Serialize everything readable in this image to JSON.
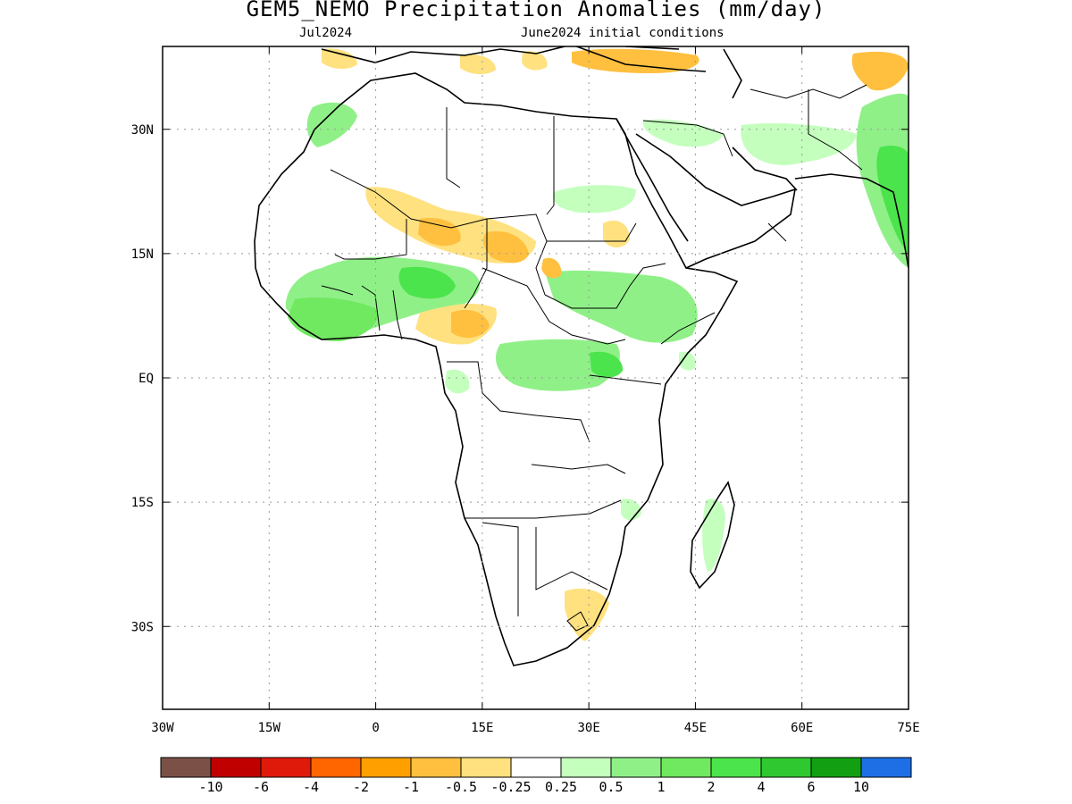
{
  "title": "GEM5_NEMO Precipitation Anomalies (mm/day)",
  "subtitle_left": "Jul2024",
  "subtitle_right": "June2024 initial conditions",
  "map": {
    "lon_range": [
      -30,
      75
    ],
    "lat_range": [
      -40,
      40
    ],
    "lon_ticks": [
      {
        "value": -30,
        "label": "30W"
      },
      {
        "value": -15,
        "label": "15W"
      },
      {
        "value": 0,
        "label": "0"
      },
      {
        "value": 15,
        "label": "15E"
      },
      {
        "value": 30,
        "label": "30E"
      },
      {
        "value": 45,
        "label": "45E"
      },
      {
        "value": 60,
        "label": "60E"
      },
      {
        "value": 75,
        "label": "75E"
      }
    ],
    "lat_ticks": [
      {
        "value": 30,
        "label": "30N"
      },
      {
        "value": 15,
        "label": "15N"
      },
      {
        "value": 0,
        "label": "EQ"
      },
      {
        "value": -15,
        "label": "15S"
      },
      {
        "value": -30,
        "label": "30S"
      }
    ],
    "grid": "dotted"
  },
  "colorbar": {
    "colors": [
      "#7b5147",
      "#c00000",
      "#e01a0a",
      "#ff6600",
      "#ffa000",
      "#ffc040",
      "#ffe180",
      "#ffffff",
      "#c4ffbe",
      "#90f088",
      "#70e860",
      "#4ce44c",
      "#30c830",
      "#12a012",
      "#1e6fe6"
    ],
    "labels": [
      "-10",
      "-6",
      "-4",
      "-2",
      "-1",
      "-0.5",
      "-0.25",
      "0.25",
      "0.5",
      "1",
      "2",
      "4",
      "6",
      "10"
    ]
  },
  "anomaly_regions": [
    {
      "name": "sahel-west-wet",
      "color": "#90f088",
      "level": "1"
    },
    {
      "name": "guinea-coast-wet",
      "color": "#70e860",
      "level": "2"
    },
    {
      "name": "sahara-dry",
      "color": "#ffe180",
      "level": "-0.5"
    },
    {
      "name": "nigeria-cameroon-dry",
      "color": "#ffc040",
      "level": "-1"
    },
    {
      "name": "sudan-ethiopia-wet",
      "color": "#90f088",
      "level": "1"
    },
    {
      "name": "congo-basin-wet",
      "color": "#90f088",
      "level": "1"
    },
    {
      "name": "mediterranean-dry",
      "color": "#ffc040",
      "level": "-1"
    },
    {
      "name": "india-wet",
      "color": "#4ce44c",
      "level": "4"
    },
    {
      "name": "south-africa-dry",
      "color": "#ffe180",
      "level": "-0.5"
    },
    {
      "name": "madagascar-wet",
      "color": "#c4ffbe",
      "level": "0.5"
    }
  ]
}
